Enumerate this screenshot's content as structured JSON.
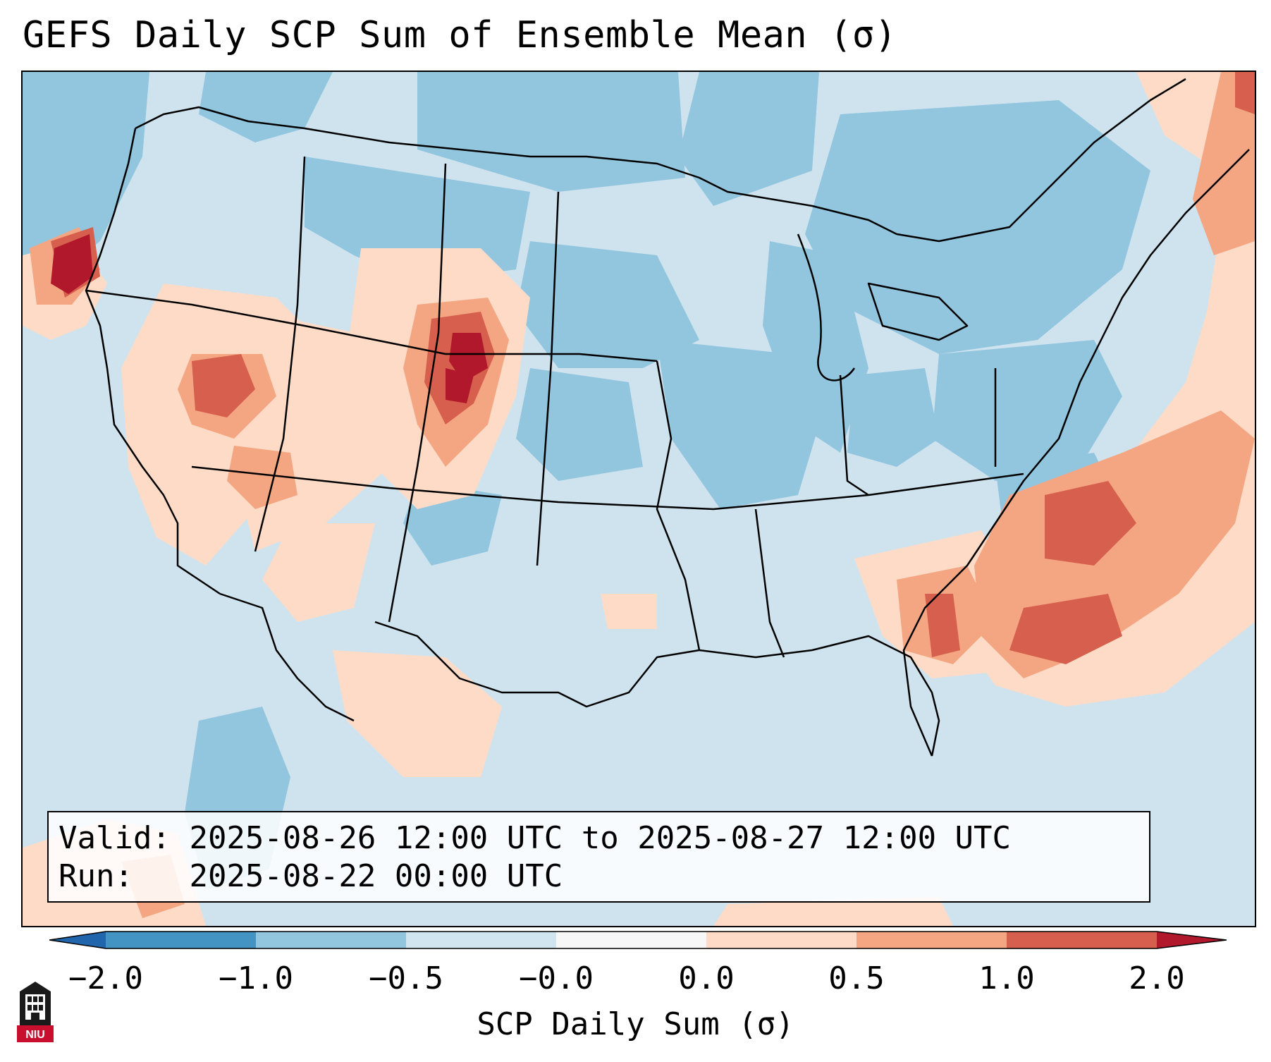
{
  "title": "GEFS Daily SCP Sum of Ensemble Mean (σ)",
  "info": {
    "valid_label": "Valid:",
    "valid_value": "2025-08-26 12:00 UTC to 2025-08-27 12:00 UTC",
    "run_label": "Run:",
    "run_value": "2025-08-22 00:00 UTC"
  },
  "colorbar": {
    "label": "SCP Daily Sum (σ)",
    "tick_labels": [
      "−2.0",
      "−1.0",
      "−0.5",
      "−0.0",
      "0.0",
      "0.5",
      "1.0",
      "2.0"
    ],
    "colors": [
      "#2166ac",
      "#4393c3",
      "#92c5de",
      "#d1e5f0",
      "#f7f7f7",
      "#fddbc7",
      "#f4a582",
      "#d6604d",
      "#b2182b"
    ]
  },
  "logo": {
    "text": "NIU"
  },
  "colors": {
    "ocean_bg": "#cfe3ef",
    "border": "#000000",
    "logo_dark": "#1a1a1a",
    "logo_red": "#c8102e"
  }
}
